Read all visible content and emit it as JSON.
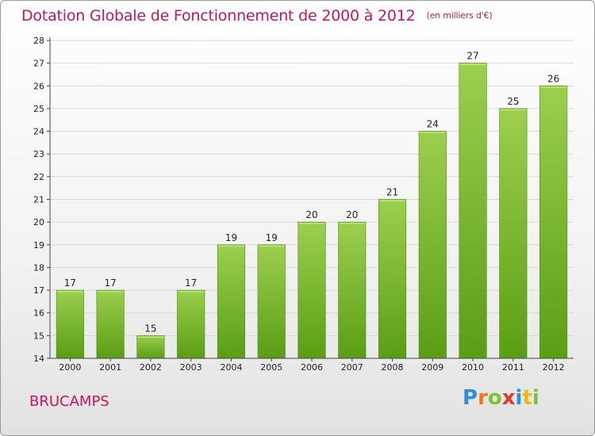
{
  "header": {
    "title": "Dotation Globale de Fonctionnement de 2000 à 2012",
    "unit": "(en milliers d'€)"
  },
  "commune": "BRUCAMPS",
  "logo": {
    "letters": [
      "P",
      "r",
      "o",
      "x",
      "i",
      "t",
      "i"
    ]
  },
  "colors": {
    "title": "#c8145a",
    "bar_top": "#9ccf4e",
    "bar_bottom": "#5a9e14"
  },
  "chart_data": {
    "type": "bar",
    "title": "Dotation Globale de Fonctionnement de 2000 à 2012",
    "subtitle": "(en milliers d'€)",
    "categories": [
      "2000",
      "2001",
      "2002",
      "2003",
      "2004",
      "2005",
      "2006",
      "2007",
      "2008",
      "2009",
      "2010",
      "2011",
      "2012"
    ],
    "values": [
      17,
      17,
      15,
      17,
      19,
      19,
      20,
      20,
      21,
      24,
      27,
      25,
      26
    ],
    "ylim": [
      14,
      28
    ],
    "yticks": [
      14,
      15,
      16,
      17,
      18,
      19,
      20,
      21,
      22,
      23,
      24,
      25,
      26,
      27,
      28
    ],
    "grid": true,
    "data_labels": true
  }
}
